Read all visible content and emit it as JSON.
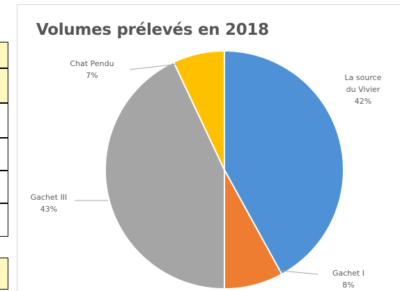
{
  "chart_data": {
    "type": "pie",
    "title": "Volumes prélevés en 2018",
    "slices": [
      {
        "name": "La source du Vivier",
        "label_lines": [
          "La source",
          "du Vivier"
        ],
        "percent_label": "42%",
        "value": 42,
        "color": "#4e91d6"
      },
      {
        "name": "Gachet I",
        "label_lines": [
          "Gachet I"
        ],
        "percent_label": "8%",
        "value": 8,
        "color": "#ee7d31"
      },
      {
        "name": "Gachet III",
        "label_lines": [
          "Gachet III"
        ],
        "percent_label": "43%",
        "value": 43,
        "color": "#a5a5a5"
      },
      {
        "name": "Chat Pendu",
        "label_lines": [
          "Chat Pendu"
        ],
        "percent_label": "7%",
        "value": 7,
        "color": "#ffc000"
      }
    ],
    "start_angle_deg": 0,
    "direction": "clockwise",
    "legend": "none",
    "data_labels": "outside-with-leader-lines"
  }
}
